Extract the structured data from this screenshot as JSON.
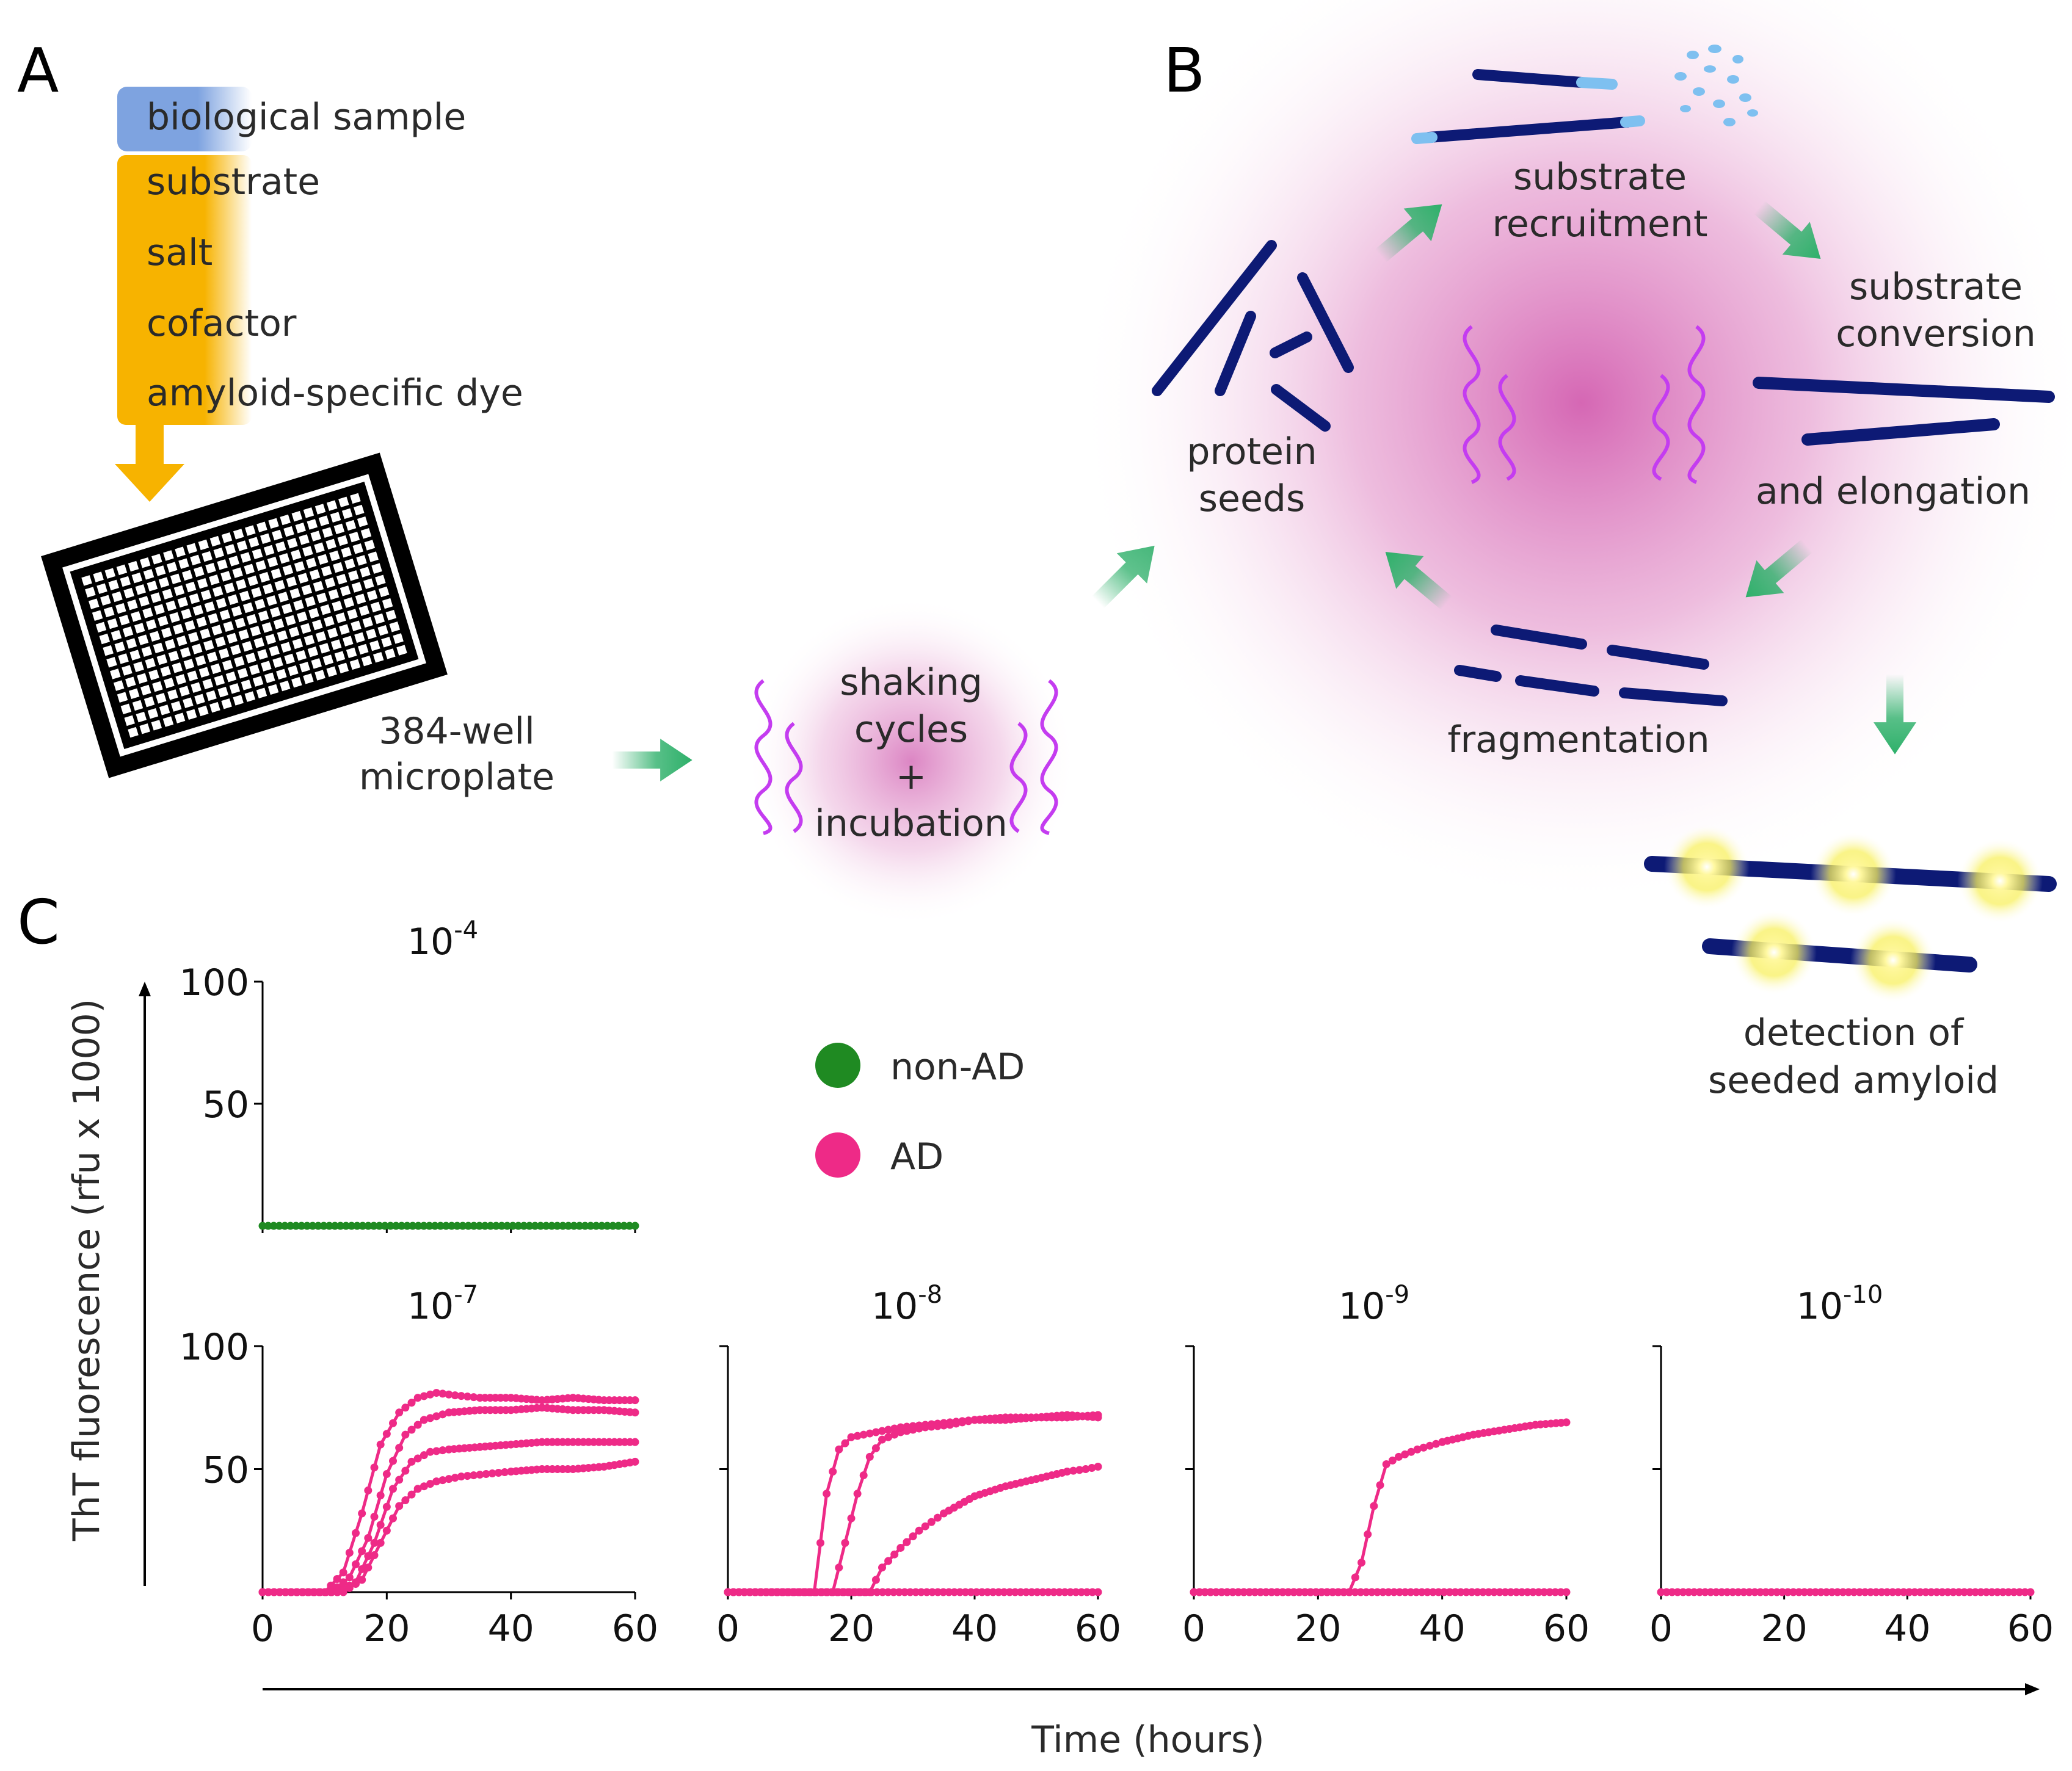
{
  "panel_labels": {
    "a": "A",
    "b": "B",
    "c": "C"
  },
  "panel_a": {
    "reagents": [
      "biological sample",
      "substrate",
      "salt",
      "cofactor",
      "amyloid-specific dye"
    ],
    "plate_label_line1": "384-well",
    "plate_label_line2": "microplate",
    "incubation_line1": "shaking",
    "incubation_line2": "cycles",
    "incubation_line3": "+",
    "incubation_line4": "incubation"
  },
  "panel_b": {
    "recruitment_line1": "substrate",
    "recruitment_line2": "recruitment",
    "conversion_line1": "substrate",
    "conversion_line2": "conversion",
    "conversion_line3": "and elongation",
    "seeds_line1": "protein",
    "seeds_line2": "seeds",
    "fragmentation": "fragmentation",
    "detection_line1": "detection of",
    "detection_line2": "seeded amyloid"
  },
  "colors": {
    "fibril": "#0d1a75",
    "arrow": "#2eb06a",
    "glow": "#d35fb0",
    "wave": "#c43cf0",
    "reagent_bar": "#f7b300",
    "sample_bar": "#7ea3e0",
    "non_ad": "#1f8a22",
    "ad": "#ee2a87"
  },
  "legend": {
    "non_ad": "non-AD",
    "ad": "AD"
  },
  "chart_data": {
    "type": "line",
    "ylabel": "ThT fluorescence (rfu x 1000)",
    "xlabel": "Time (hours)",
    "xlim": [
      0,
      60
    ],
    "ylim": [
      0,
      100
    ],
    "xticks": [
      "0",
      "20",
      "40",
      "60"
    ],
    "yticks": [
      "50",
      "100"
    ],
    "panels": [
      {
        "id": "p4",
        "dilution_base": "10",
        "dilution_exp": "-4",
        "series": [
          {
            "group": "non-AD",
            "x": [
              0,
              60
            ],
            "y": [
              0,
              0
            ]
          }
        ]
      },
      {
        "id": "p7",
        "dilution_base": "10",
        "dilution_exp": "-7",
        "series": [
          {
            "group": "AD",
            "x": [
              0,
              10,
              13,
              16,
              19,
              22,
              25,
              28,
              31,
              35,
              40,
              45,
              50,
              55,
              60
            ],
            "y": [
              0,
              0,
              8,
              32,
              60,
              73,
              79,
              81,
              80,
              79,
              79,
              78,
              79,
              78,
              78
            ]
          },
          {
            "group": "AD",
            "x": [
              0,
              11,
              14,
              17,
              20,
              23,
              26,
              30,
              35,
              40,
              45,
              50,
              55,
              60
            ],
            "y": [
              0,
              0,
              6,
              22,
              48,
              64,
              70,
              73,
              74,
              74,
              75,
              74,
              74,
              73
            ]
          },
          {
            "group": "AD",
            "x": [
              0,
              12,
              15,
              18,
              21,
              24,
              27,
              30,
              35,
              40,
              45,
              50,
              55,
              60
            ],
            "y": [
              0,
              0,
              4,
              20,
              42,
              53,
              57,
              58,
              59,
              60,
              61,
              61,
              61,
              61
            ]
          },
          {
            "group": "AD",
            "x": [
              0,
              13,
              16,
              19,
              22,
              25,
              28,
              32,
              36,
              40,
              45,
              50,
              55,
              60
            ],
            "y": [
              0,
              0,
              5,
              20,
              35,
              42,
              45,
              47,
              48,
              49,
              50,
              50,
              51,
              53
            ]
          }
        ]
      },
      {
        "id": "p8",
        "dilution_base": "10",
        "dilution_exp": "-8",
        "series": [
          {
            "group": "AD",
            "x": [
              0,
              14,
              16,
              18,
              20,
              24,
              28,
              32,
              36,
              40,
              45,
              50,
              55,
              60
            ],
            "y": [
              0,
              0,
              40,
              58,
              63,
              65,
              67,
              68,
              69,
              70,
              70,
              71,
              71,
              72
            ]
          },
          {
            "group": "AD",
            "x": [
              0,
              17,
              19,
              21,
              23,
              25,
              28,
              32,
              36,
              40,
              45,
              50,
              55,
              60
            ],
            "y": [
              0,
              0,
              20,
              40,
              55,
              62,
              65,
              67,
              68,
              70,
              71,
              71,
              72,
              71
            ]
          },
          {
            "group": "AD",
            "x": [
              0,
              23,
              25,
              28,
              31,
              35,
              40,
              45,
              50,
              55,
              58,
              60
            ],
            "y": [
              0,
              0,
              10,
              18,
              25,
              32,
              39,
              43,
              46,
              49,
              50,
              51
            ]
          },
          {
            "group": "AD",
            "x": [
              0,
              60
            ],
            "y": [
              0,
              0
            ]
          }
        ]
      },
      {
        "id": "p9",
        "dilution_base": "10",
        "dilution_exp": "-9",
        "series": [
          {
            "group": "AD",
            "x": [
              0,
              25,
              27,
              29,
              31,
              33,
              36,
              40,
              45,
              50,
              55,
              60
            ],
            "y": [
              0,
              0,
              12,
              35,
              52,
              55,
              58,
              61,
              64,
              66,
              68,
              69
            ]
          },
          {
            "group": "AD",
            "x": [
              0,
              60
            ],
            "y": [
              0,
              0
            ]
          }
        ]
      },
      {
        "id": "p10",
        "dilution_base": "10",
        "dilution_exp": "-10",
        "series": [
          {
            "group": "AD",
            "x": [
              0,
              60
            ],
            "y": [
              0,
              0
            ]
          }
        ]
      }
    ]
  }
}
